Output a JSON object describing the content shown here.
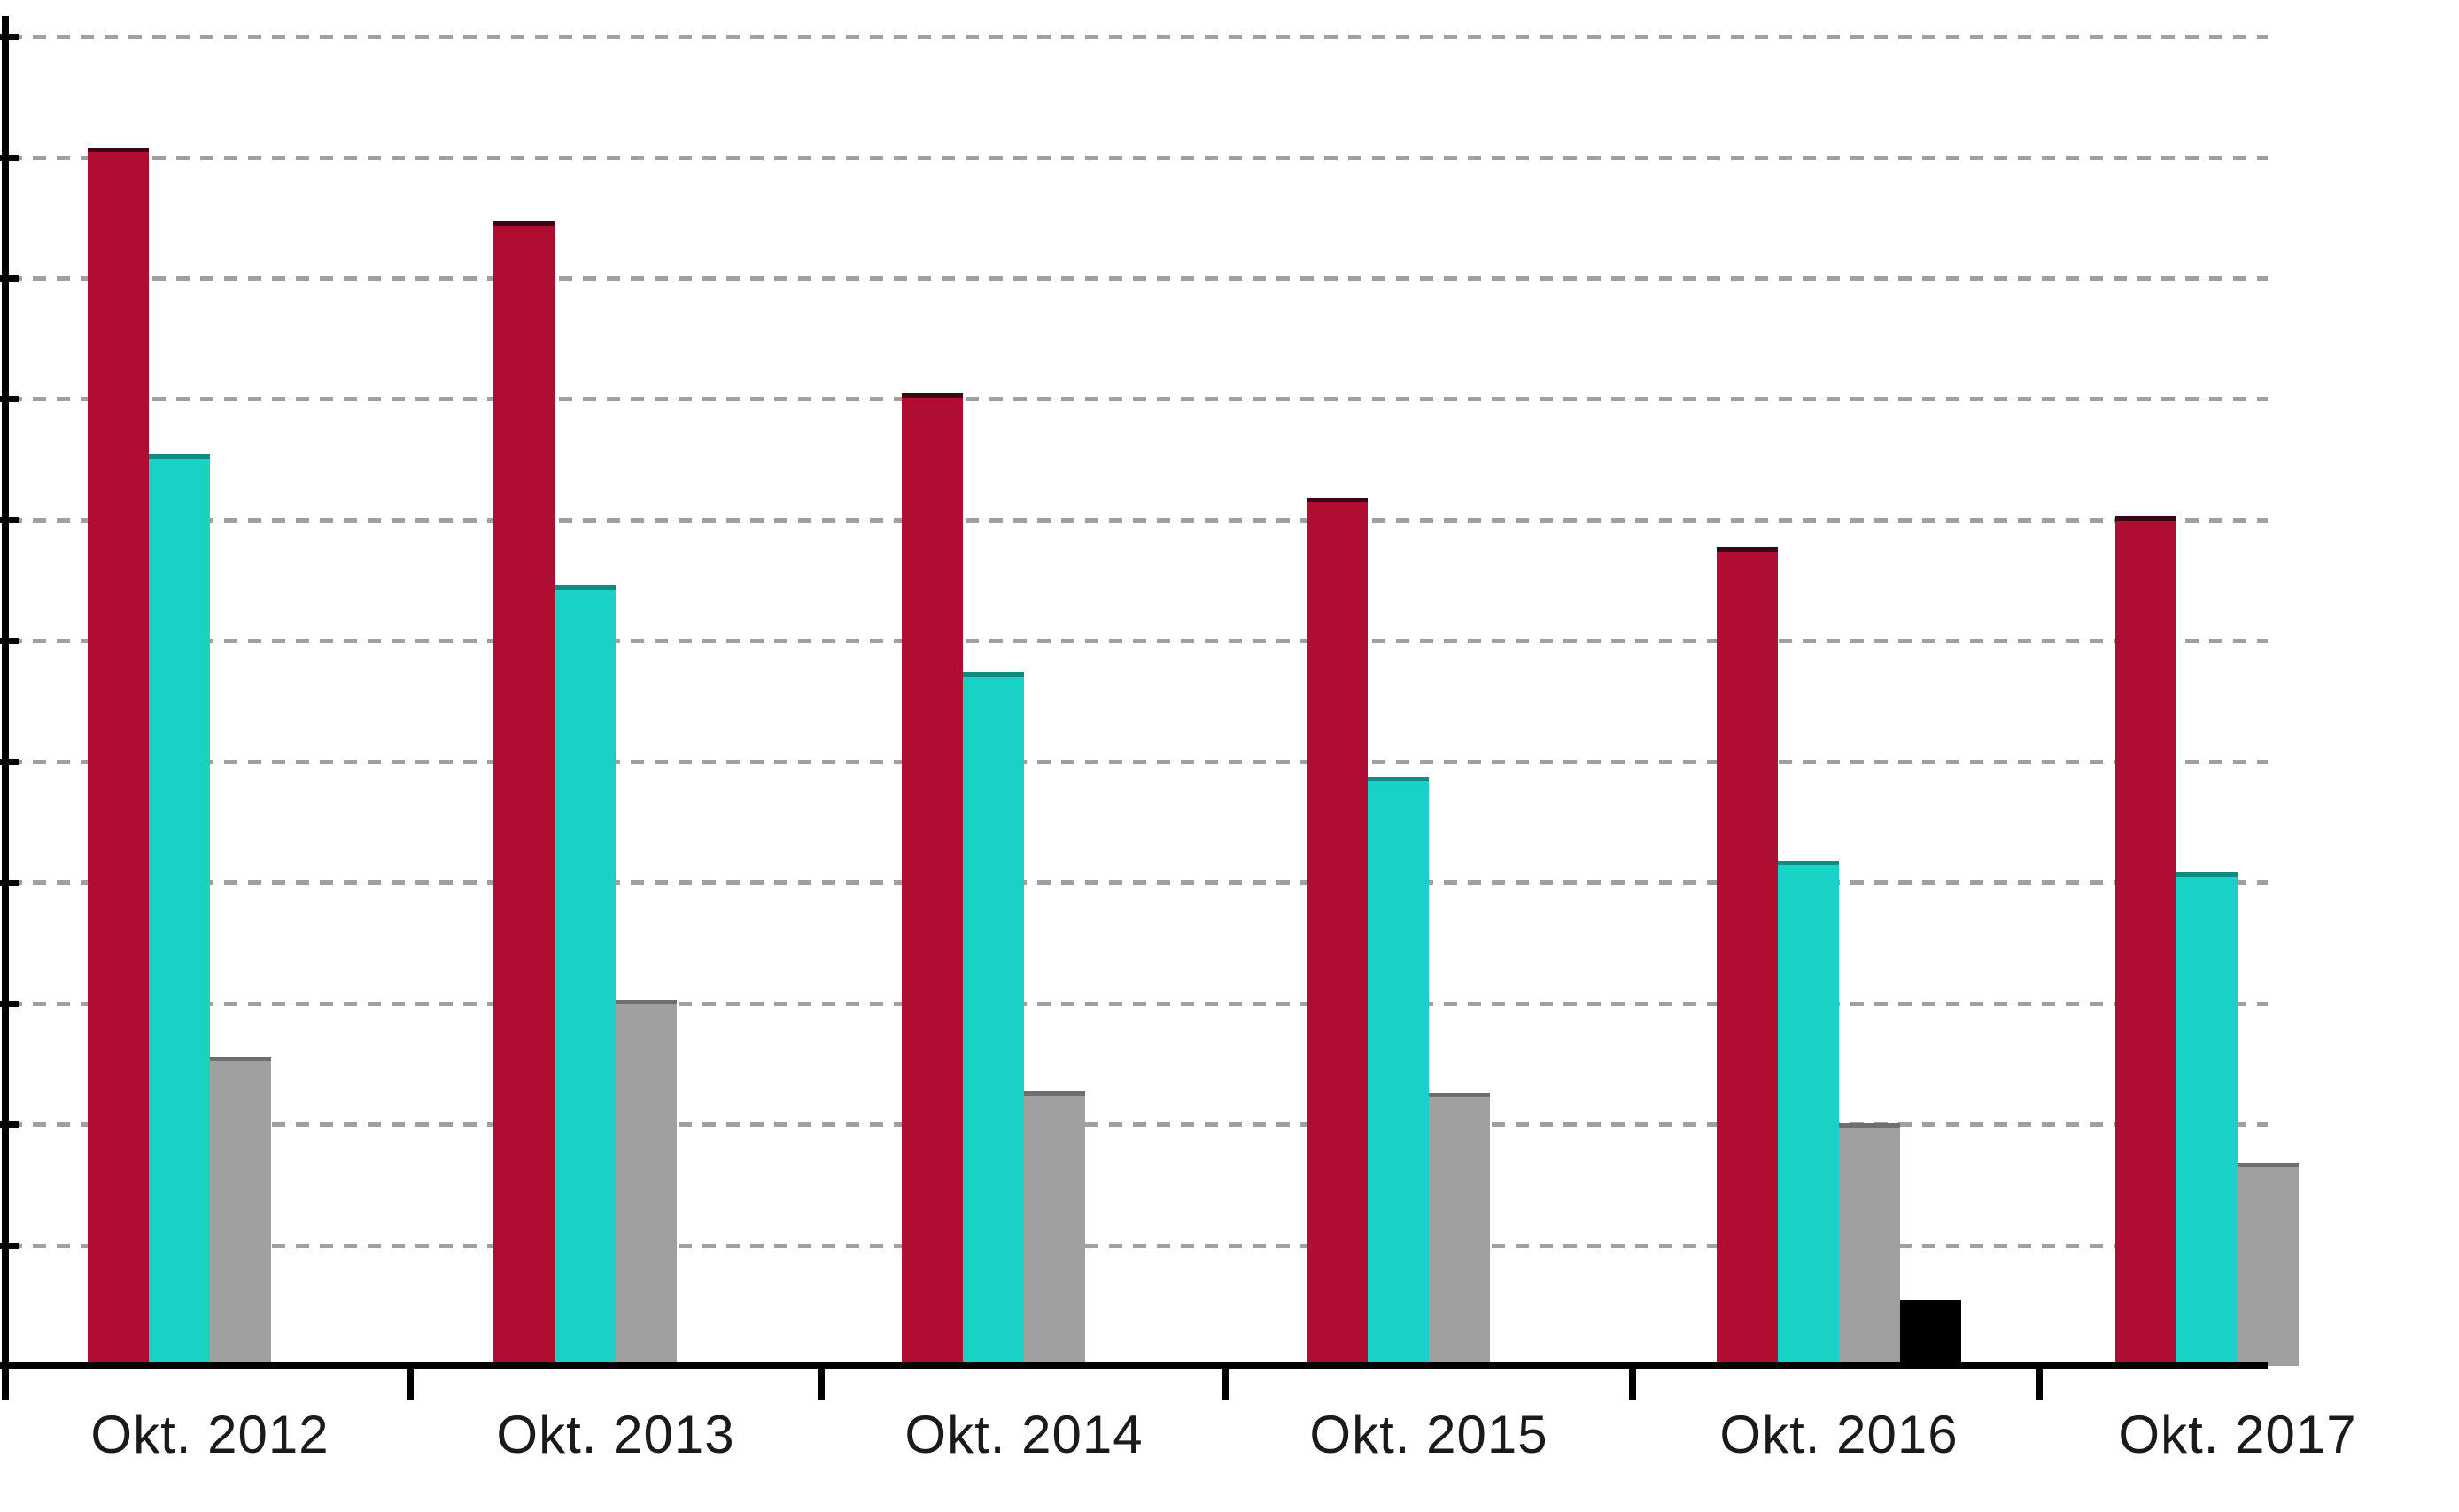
{
  "chart_data": {
    "type": "bar",
    "title": "",
    "categories": [
      "Okt. 2012",
      "Okt. 2013",
      "Okt. 2014",
      "Okt. 2015",
      "Okt. 2016",
      "Okt. 2017"
    ],
    "series": [
      {
        "name": "red",
        "color": "#b00d33",
        "edge_color": "#3c0413",
        "values": [
          10.08,
          9.47,
          8.05,
          7.18,
          6.77,
          7.03
        ]
      },
      {
        "name": "cyan",
        "color": "#17d2c5",
        "edge_color": "#0e8b82",
        "values": [
          7.54,
          6.46,
          5.74,
          4.87,
          4.18,
          4.08
        ]
      },
      {
        "name": "gray",
        "color": "#a0a0a0",
        "edge_color": "#6e6e6e",
        "values": [
          2.56,
          3.03,
          2.27,
          2.26,
          2.01,
          1.68
        ]
      },
      {
        "name": "black",
        "color": "#000000",
        "edge_color": "#000000",
        "values": [
          0,
          0,
          0,
          0,
          0.54,
          0
        ]
      }
    ],
    "ylim": [
      0,
      11.15
    ],
    "y_axis_labels": "not visible (cropped)",
    "y_gridline_interval": 1,
    "gridline_style": "dashed",
    "gridline_color": "#8f8f8f",
    "axis_color": "#000000",
    "legend": "none",
    "xlabel": "",
    "ylabel": ""
  }
}
